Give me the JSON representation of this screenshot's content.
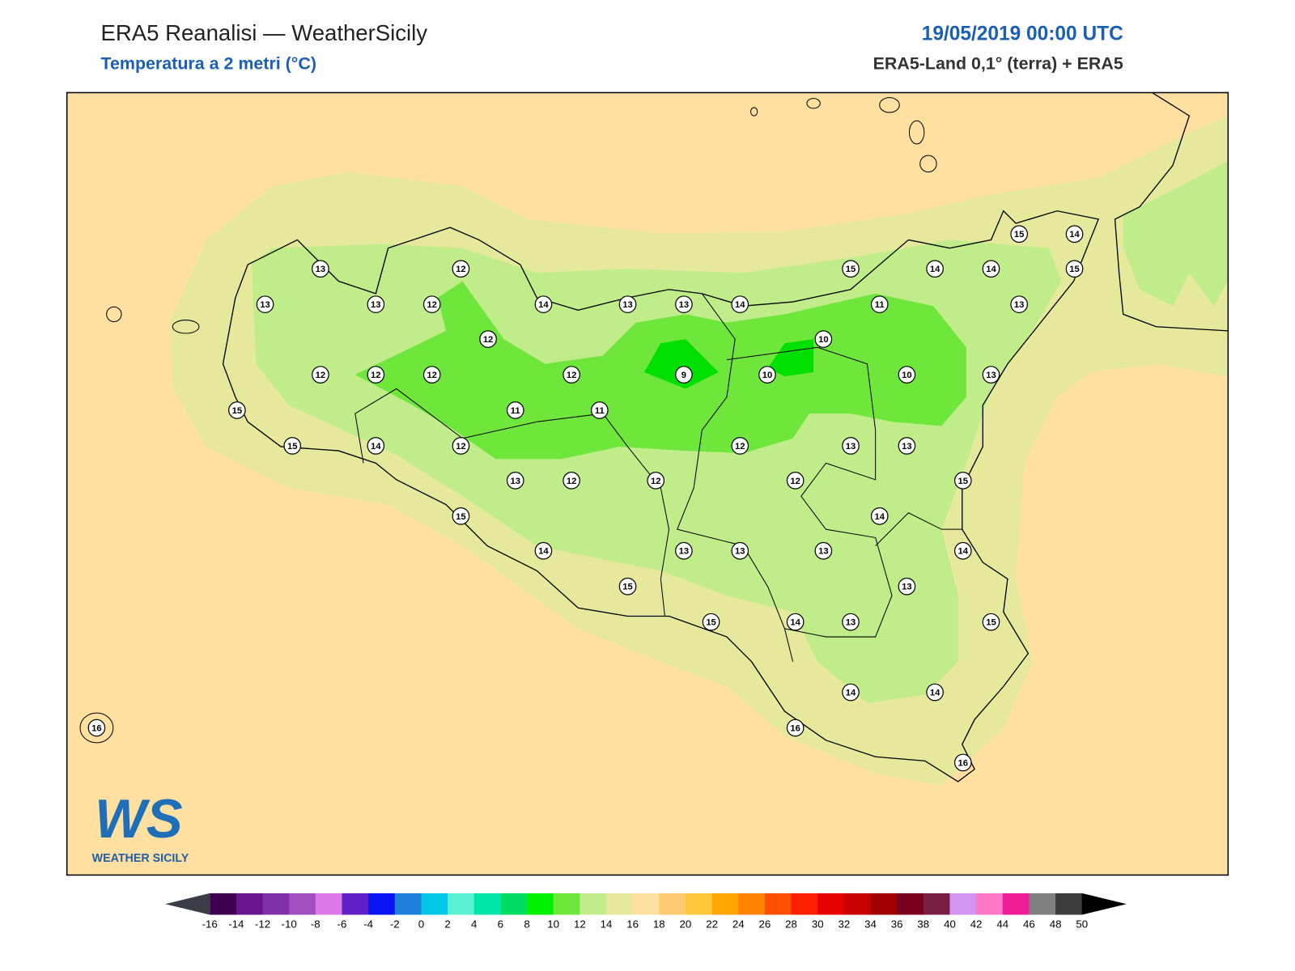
{
  "header": {
    "title": "ERA5 Reanalisi — WeatherSicily",
    "subtitle": "Temperatura a 2 metri (°C)",
    "datetime": "19/05/2019 00:00 UTC",
    "source": "ERA5-Land 0,1° (terra) + ERA5"
  },
  "map": {
    "stations": [
      13,
      12,
      13,
      13,
      12,
      14,
      13,
      13,
      14,
      15,
      14,
      14,
      15,
      14,
      15,
      11,
      13,
      12,
      10,
      12,
      12,
      12,
      12,
      9,
      10,
      10,
      13,
      15,
      11,
      11,
      15,
      14,
      12,
      12,
      13,
      13,
      13,
      12,
      12,
      12,
      15,
      15,
      14,
      14,
      13,
      13,
      13,
      14,
      15,
      13,
      15,
      14,
      13,
      15,
      14,
      14,
      16,
      16,
      16
    ]
  },
  "colorbar": {
    "ticks": [
      -16,
      -14,
      -12,
      -10,
      -8,
      -6,
      -4,
      -2,
      0,
      2,
      4,
      6,
      8,
      10,
      12,
      14,
      16,
      18,
      20,
      22,
      24,
      26,
      28,
      30,
      32,
      34,
      36,
      38,
      40,
      42,
      44,
      46,
      48,
      50
    ],
    "colors": [
      "#3d0050",
      "#6a1590",
      "#8030a8",
      "#a050c0",
      "#dc78e8",
      "#6020c8",
      "#0a14f0",
      "#1e80dc",
      "#00c8e6",
      "#5af0d2",
      "#00e6aa",
      "#00dc64",
      "#00f000",
      "#6ee63c",
      "#c0ec8a",
      "#e6e89c",
      "#ffe0a0",
      "#fcca70",
      "#ffc83c",
      "#ffa500",
      "#ff8200",
      "#ff5000",
      "#ff1e00",
      "#e60000",
      "#c80000",
      "#a00000",
      "#78001e",
      "#7a1e46",
      "#d296f0",
      "#ff78c8",
      "#f01e96",
      "#808080",
      "#3c3c3c"
    ],
    "under_color": "#3c3c46",
    "over_color": "#000000"
  },
  "logo": {
    "mark": "WS",
    "text": "WEATHER SICILY"
  }
}
